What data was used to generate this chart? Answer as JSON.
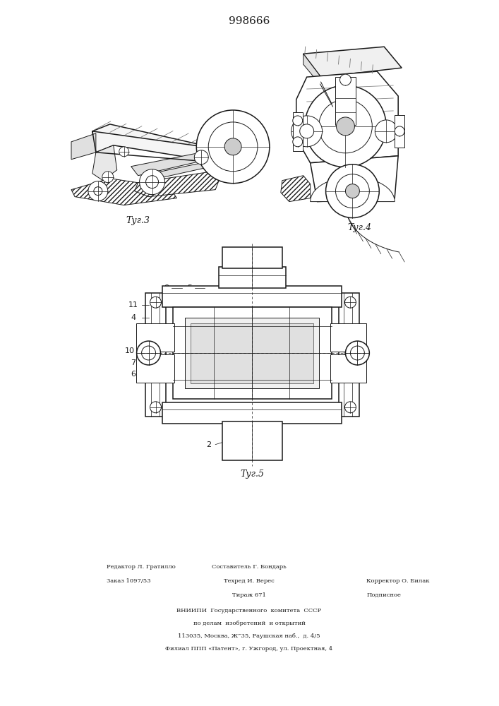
{
  "title": "998666",
  "fig3_label": "Τуг.3",
  "fig4_label": "Τуг.4",
  "fig5_label": "Τуг.5",
  "bg_color": "#ffffff",
  "line_color": "#1a1a1a",
  "footer": {
    "editor": "Редактор Л. Гратилло",
    "compiler": "Составитель Г. Бондарь",
    "order": "Заказ 1097/53",
    "tech": "Техред И. Верес",
    "corrector": "Корректор О. Билак",
    "print_run": "Тираж 671",
    "subscribed": "Подписное",
    "vniip1": "ВНИИПИ  Государственного  комитета  СССР",
    "vniip2": "по делам  изобретений  и открытий",
    "address": "113035, Москва, Ж‴35, Раушская наб.,  д. 4/5",
    "filial": "Филиал ППП «Патент», г. Ужгород, ул. Проектная, 4"
  }
}
